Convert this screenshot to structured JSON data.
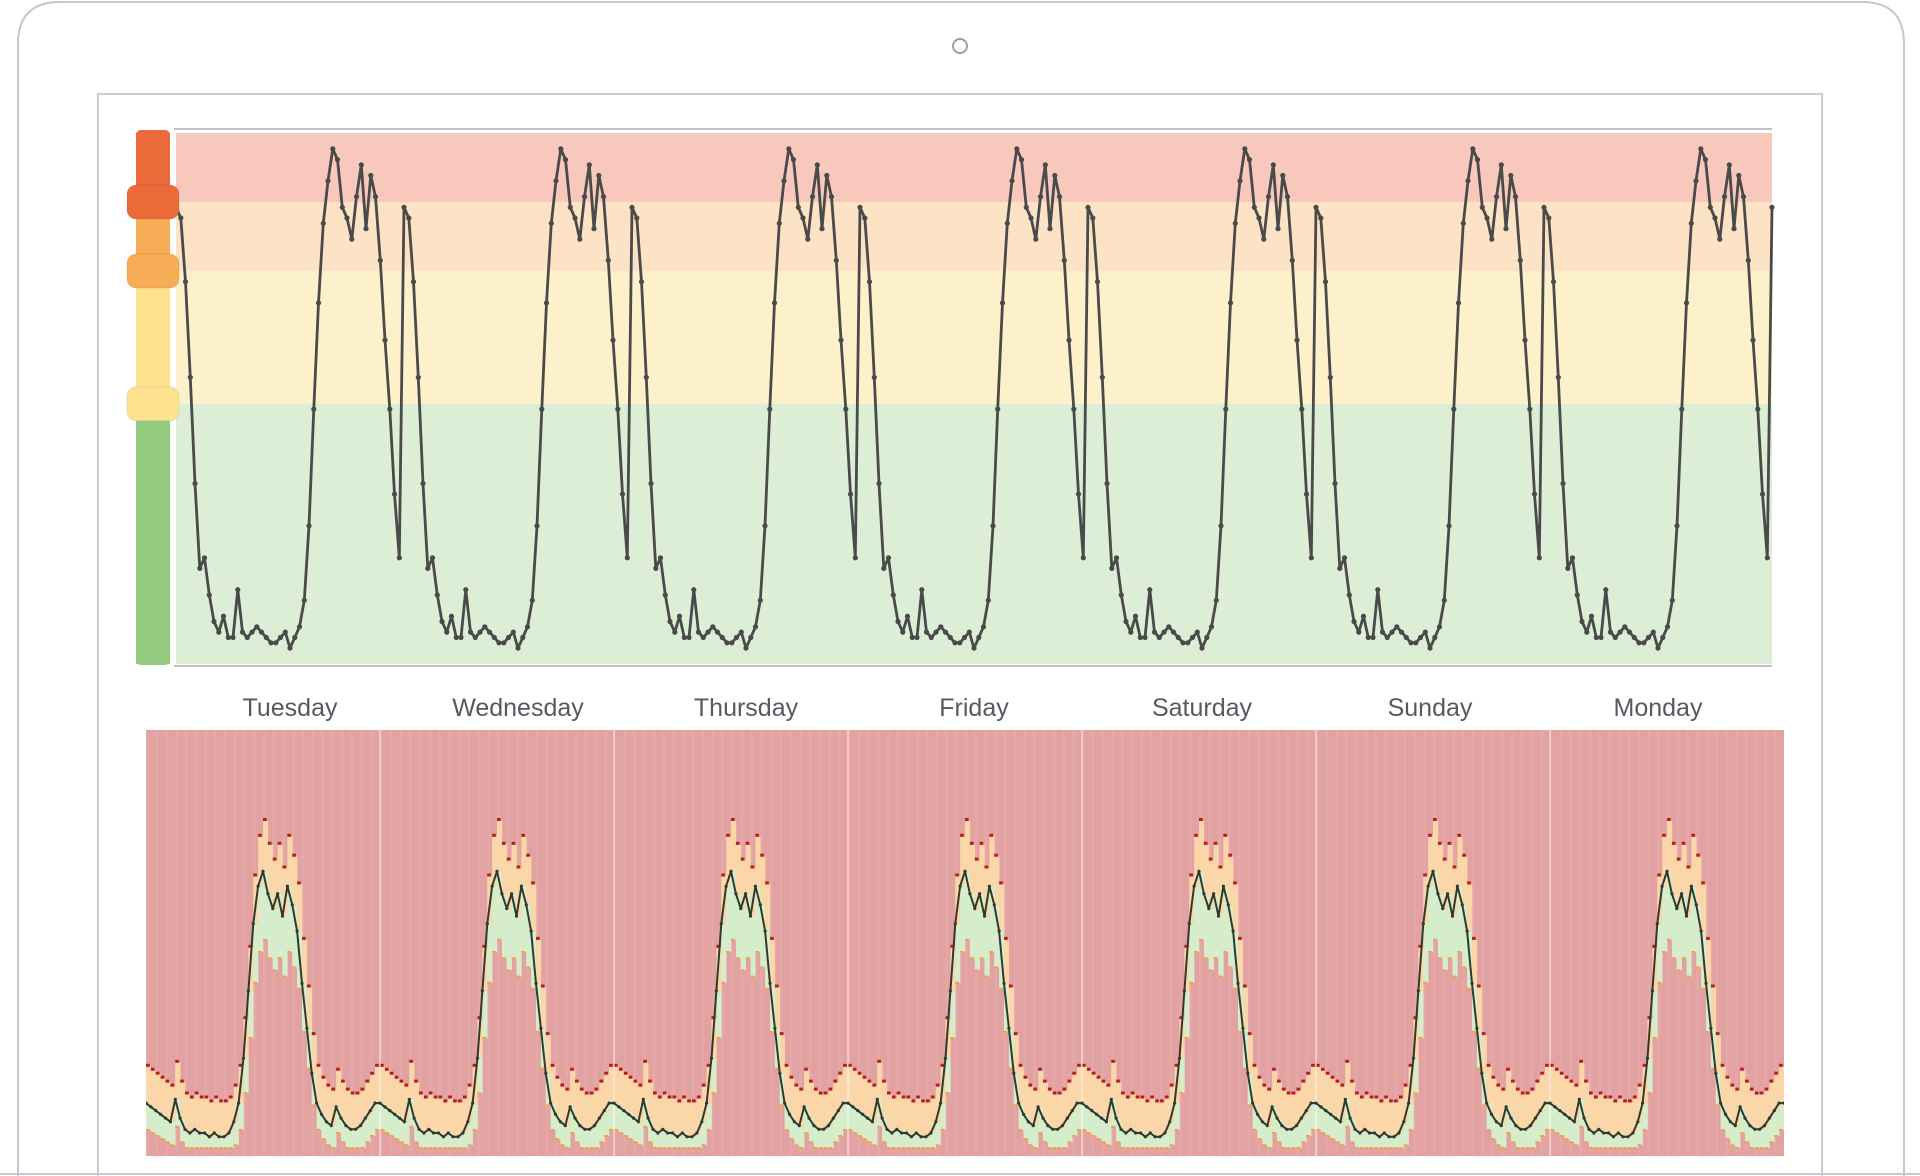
{
  "colors": {
    "band_critical": "#f8c8bc",
    "band_high": "#fde3c5",
    "band_warn": "#fdf1cc",
    "band_ok": "#dcefd6",
    "handle_critical": "#ec6a3a",
    "handle_high": "#f7ad55",
    "handle_warn": "#fde38f",
    "handle_ok": "#93cc80",
    "line": "#4a4a4a",
    "heatmap_bg": "#e3a2a2",
    "forecast_mark": "#b71c1c",
    "forecast_band_high": "#fbd6a8",
    "forecast_band_low": "#d6edcc"
  },
  "chart_data": [
    {
      "type": "line",
      "title": "",
      "xlabel": "",
      "ylabel": "",
      "categories": [
        "Tuesday",
        "Wednesday",
        "Thursday",
        "Friday",
        "Saturday",
        "Sunday",
        "Monday"
      ],
      "points_per_day": 48,
      "series": [
        {
          "values_per_day": [
            0.86,
            0.84,
            0.72,
            0.54,
            0.34,
            0.18,
            0.2,
            0.13,
            0.08,
            0.06,
            0.09,
            0.05,
            0.05,
            0.14,
            0.06,
            0.05,
            0.06,
            0.07,
            0.06,
            0.05,
            0.04,
            0.04,
            0.05,
            0.06,
            0.03,
            0.05,
            0.07,
            0.12,
            0.26,
            0.48,
            0.68,
            0.83,
            0.91,
            0.97,
            0.95,
            0.86,
            0.84,
            0.8,
            0.88,
            0.94,
            0.82,
            0.92,
            0.88,
            0.76,
            0.61,
            0.48,
            0.32,
            0.2
          ]
        }
      ],
      "threshold_bands": [
        {
          "level": "ok",
          "from": 0,
          "to": 0.49
        },
        {
          "level": "warn",
          "from": 0.49,
          "to": 0.74
        },
        {
          "level": "high",
          "from": 0.74,
          "to": 0.87
        },
        {
          "level": "critical",
          "from": 0.87,
          "to": 1.0
        }
      ],
      "ylim": [
        0,
        1
      ]
    },
    {
      "type": "heatmap",
      "title": "",
      "categories": [
        "Tuesday",
        "Wednesday",
        "Thursday",
        "Friday",
        "Saturday",
        "Sunday",
        "Monday"
      ],
      "points_per_day": 48,
      "series": [
        {
          "values_per_day": [
            0.12,
            0.11,
            0.1,
            0.09,
            0.08,
            0.07,
            0.13,
            0.08,
            0.05,
            0.04,
            0.05,
            0.04,
            0.04,
            0.03,
            0.04,
            0.03,
            0.03,
            0.04,
            0.07,
            0.12,
            0.24,
            0.42,
            0.6,
            0.7,
            0.74,
            0.68,
            0.64,
            0.68,
            0.62,
            0.7,
            0.65,
            0.58,
            0.44,
            0.32,
            0.2,
            0.12,
            0.09,
            0.07,
            0.06,
            0.11,
            0.08,
            0.06,
            0.05,
            0.05,
            0.06,
            0.08,
            0.1,
            0.12
          ]
        }
      ],
      "ylim": [
        0,
        1
      ]
    }
  ]
}
